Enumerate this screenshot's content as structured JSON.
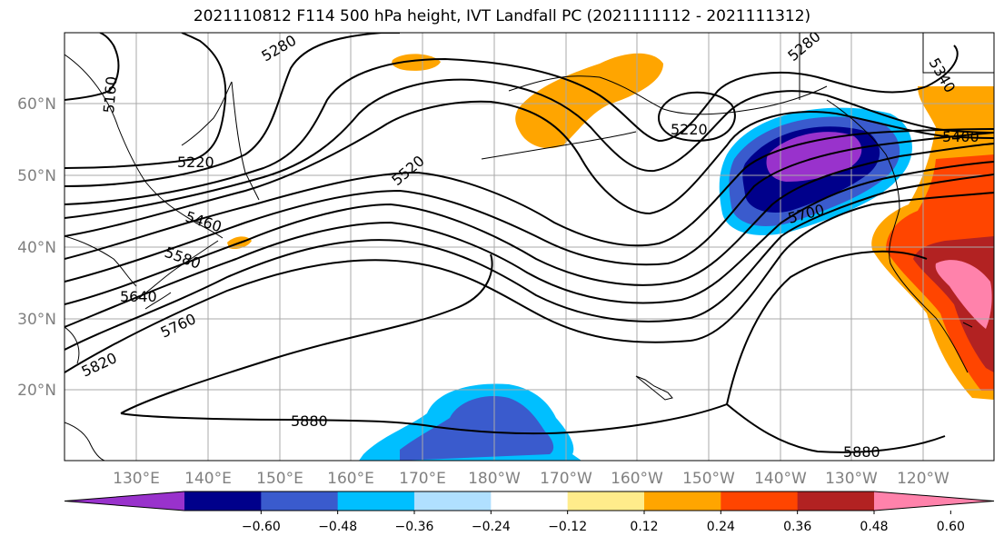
{
  "title": "2021110812 F114 500 hPa height, IVT Landfall PC (2021111112 - 2021111312)",
  "lon_ticks": [
    "130°E",
    "140°E",
    "150°E",
    "160°E",
    "170°E",
    "180°W",
    "170°W",
    "160°W",
    "150°W",
    "140°W",
    "130°W",
    "120°W"
  ],
  "lat_ticks": [
    "60°N",
    "50°N",
    "40°N",
    "30°N",
    "20°N"
  ],
  "contour_labels": [
    "5160",
    "5280",
    "5220",
    "5220",
    "5280",
    "5340",
    "5400",
    "5460",
    "5520",
    "5580",
    "5640",
    "5700",
    "5760",
    "5820",
    "5880",
    "5880"
  ],
  "colorbar": {
    "ticks": [
      "−0.60",
      "−0.48",
      "−0.36",
      "−0.24",
      "−0.12",
      "0.12",
      "0.24",
      "0.36",
      "0.48",
      "0.60"
    ],
    "colors": [
      "#9932cc",
      "#00008b",
      "#3a5bcd",
      "#00bfff",
      "#b0e0ff",
      "#ffffff",
      "#ffec8b",
      "#ffa500",
      "#ff4500",
      "#b22222",
      "#ff82ab"
    ]
  }
}
